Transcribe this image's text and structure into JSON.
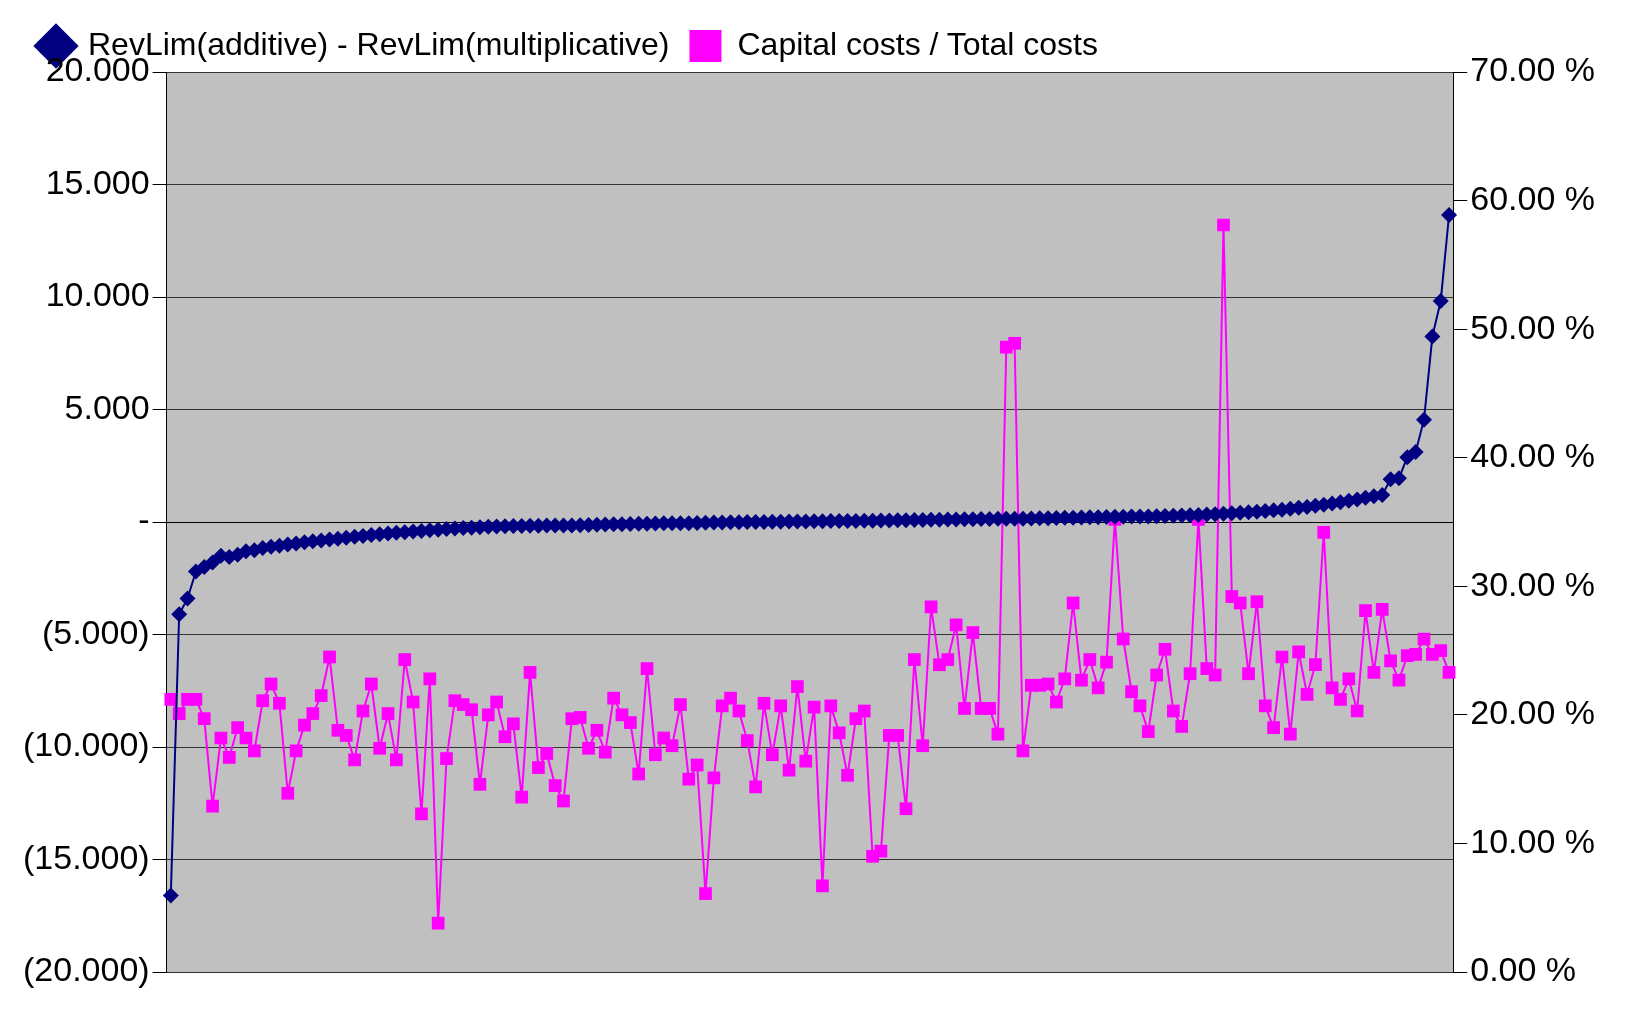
{
  "chart_data": {
    "type": "line",
    "categories": [
      null,
      null,
      null,
      null,
      null,
      null,
      null,
      null,
      null,
      null,
      null,
      null,
      null,
      null,
      null,
      null,
      null,
      null,
      null,
      null,
      null,
      null,
      null,
      null,
      null,
      null,
      null,
      null,
      null,
      null,
      null,
      null,
      null,
      null,
      null,
      null,
      null,
      null,
      null,
      null,
      null,
      null,
      null,
      null,
      null,
      null,
      null,
      null,
      null,
      null,
      null,
      null,
      null,
      null,
      null,
      null,
      null,
      null,
      null,
      null,
      null,
      null,
      null,
      null,
      null,
      null,
      null,
      null,
      null,
      null,
      null,
      null,
      null,
      null,
      null,
      null,
      null,
      null,
      null,
      null,
      null,
      null,
      null,
      null,
      null,
      null,
      null,
      null,
      null,
      null,
      null,
      null,
      null,
      null,
      null,
      null,
      null,
      null,
      null,
      null,
      null,
      null,
      null,
      null,
      null,
      null,
      null,
      null,
      null,
      null,
      null,
      null,
      null,
      null,
      null,
      null,
      null,
      null,
      null,
      null,
      null,
      null,
      null,
      null,
      null,
      null,
      null,
      null,
      null,
      null,
      null,
      null,
      null,
      null,
      null,
      null,
      null,
      null,
      null,
      null,
      null,
      null,
      null,
      null,
      null,
      null,
      null,
      null,
      null,
      null,
      null,
      null,
      null,
      null
    ],
    "series": [
      {
        "name": "RevLim(additive) - RevLim(multiplicative)",
        "color": "#000080",
        "marker": "diamond",
        "values": [
          -16.6,
          -4.1,
          -3.4,
          -2.2,
          -2,
          -1.8,
          -1.5,
          -1.55,
          -1.45,
          -1.3,
          -1.25,
          -1.15,
          -1.1,
          -1.05,
          -1,
          -0.95,
          -0.9,
          -0.85,
          -0.82,
          -0.78,
          -0.74,
          -0.7,
          -0.66,
          -0.62,
          -0.58,
          -0.54,
          -0.51,
          -0.48,
          -0.45,
          -0.42,
          -0.4,
          -0.37,
          -0.34,
          -0.31,
          -0.29,
          -0.27,
          -0.25,
          -0.23,
          -0.21,
          -0.2,
          -0.19,
          -0.18,
          -0.18,
          -0.17,
          -0.17,
          -0.16,
          -0.16,
          -0.15,
          -0.15,
          -0.14,
          -0.13,
          -0.12,
          -0.11,
          -0.1,
          -0.1,
          -0.09,
          -0.08,
          -0.08,
          -0.07,
          -0.06,
          -0.06,
          -0.05,
          -0.05,
          -0.04,
          -0.03,
          -0.02,
          -0.02,
          -0.01,
          -0.01,
          0,
          0,
          0,
          0.01,
          0.01,
          0.02,
          0.02,
          0.02,
          0.03,
          0.03,
          0.04,
          0.04,
          0.05,
          0.05,
          0.06,
          0.06,
          0.07,
          0.07,
          0.08,
          0.08,
          0.09,
          0.09,
          0.1,
          0.1,
          0.11,
          0.11,
          0.12,
          0.12,
          0.13,
          0.13,
          0.14,
          0.14,
          0.15,
          0.15,
          0.16,
          0.17,
          0.17,
          0.18,
          0.19,
          0.19,
          0.2,
          0.21,
          0.21,
          0.22,
          0.23,
          0.23,
          0.24,
          0.25,
          0.25,
          0.26,
          0.27,
          0.28,
          0.29,
          0.3,
          0.31,
          0.33,
          0.35,
          0.37,
          0.39,
          0.41,
          0.43,
          0.46,
          0.49,
          0.52,
          0.55,
          0.59,
          0.63,
          0.67,
          0.72,
          0.77,
          0.82,
          0.88,
          0.94,
          1,
          1.08,
          1.15,
          1.2,
          1.9,
          1.94,
          2.88,
          3.11,
          4.55,
          8.24,
          9.82,
          13.65
        ]
      },
      {
        "name": "Capital costs / Total costs",
        "color": "#ff00ff",
        "marker": "square",
        "axis": "y2",
        "values": [
          21.2,
          20.1,
          21.2,
          21.2,
          19.7,
          12.9,
          18.2,
          16.7,
          19.0,
          18.2,
          17.2,
          21.1,
          22.4,
          20.9,
          13.9,
          17.2,
          19.2,
          20.1,
          21.5,
          24.5,
          18.8,
          18.4,
          16.5,
          20.3,
          22.4,
          17.4,
          20.1,
          16.5,
          24.3,
          21.0,
          12.3,
          22.8,
          3.8,
          16.6,
          21.1,
          20.8,
          20.4,
          14.6,
          20.0,
          21.0,
          18.3,
          19.3,
          13.6,
          23.3,
          15.9,
          17.0,
          14.5,
          13.3,
          19.7,
          19.8,
          17.4,
          18.8,
          17.1,
          21.3,
          20.0,
          19.4,
          15.4,
          23.6,
          16.9,
          18.2,
          17.6,
          20.8,
          15.0,
          16.1,
          6.1,
          15.1,
          20.7,
          21.3,
          20.3,
          18.0,
          14.4,
          20.9,
          16.9,
          20.7,
          15.7,
          22.2,
          16.4,
          20.6,
          6.7,
          20.7,
          18.6,
          15.3,
          19.7,
          20.3,
          9.0,
          9.4,
          18.4,
          18.4,
          12.7,
          24.3,
          17.6,
          28.4,
          23.9,
          24.3,
          27.0,
          20.5,
          26.4,
          20.5,
          20.5,
          18.5,
          48.6,
          48.9,
          17.2,
          22.3,
          22.3,
          22.4,
          21.0,
          22.8,
          28.7,
          22.7,
          24.3,
          22.1,
          24.1,
          35.2,
          25.9,
          21.8,
          20.7,
          18.7,
          23.1,
          25.1,
          20.3,
          19.1,
          23.2,
          35.2,
          23.6,
          23.1,
          58.1,
          29.2,
          28.7,
          23.2,
          28.8,
          20.7,
          19.0,
          24.5,
          18.5,
          24.9,
          21.6,
          23.9,
          34.2,
          22.1,
          21.2,
          22.8,
          20.3,
          28.1,
          23.3,
          28.2,
          24.2,
          22.7,
          24.6,
          24.7,
          25.9,
          24.7,
          25.0,
          23.3
        ]
      }
    ],
    "ylim": [
      -20,
      20
    ],
    "yticks": [
      {
        "value": 20,
        "label": "20.000"
      },
      {
        "value": 15,
        "label": "15.000"
      },
      {
        "value": 10,
        "label": "10.000"
      },
      {
        "value": 5,
        "label": "5.000"
      },
      {
        "value": 0,
        "label": "-"
      },
      {
        "value": -5,
        "label": "(5.000)"
      },
      {
        "value": -10,
        "label": "(10.000)"
      },
      {
        "value": -15,
        "label": "(15.000)"
      },
      {
        "value": -20,
        "label": "(20.000)"
      }
    ],
    "y2lim": [
      0,
      70
    ],
    "y2ticks": [
      {
        "value": 0,
        "label": "0.00 %"
      },
      {
        "value": 10,
        "label": "10.00 %"
      },
      {
        "value": 20,
        "label": "20.00 %"
      },
      {
        "value": 30,
        "label": "30.00 %"
      },
      {
        "value": 40,
        "label": "40.00 %"
      },
      {
        "value": 50,
        "label": "50.00 %"
      },
      {
        "value": 60,
        "label": "60.00 %"
      },
      {
        "value": 70,
        "label": "70.00 %"
      }
    ],
    "grid": "y",
    "legend": "top left",
    "line_style": "solid"
  }
}
